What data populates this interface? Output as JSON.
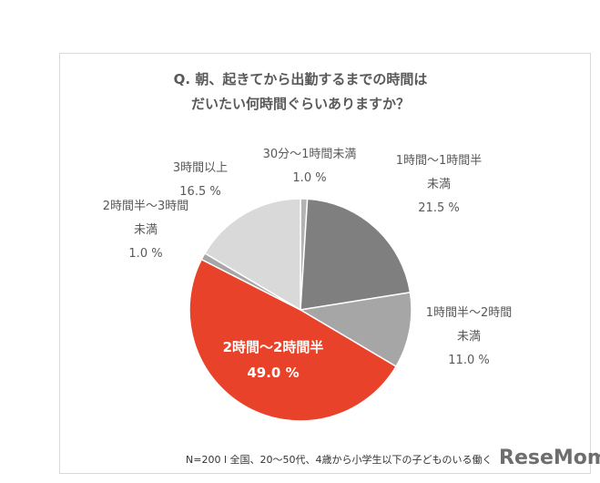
{
  "chart_data": {
    "type": "pie",
    "title": "Q. 朝、起きてから出勤するまでの時間は\nだいたい何時間ぐらいありますか？",
    "categories": [
      "30分～1時間未満",
      "1時間～1時間半\n未満",
      "1時間半～2時間\n未満",
      "2時間～2時間半",
      "2時間半～3時間\n未満",
      "3時間以上"
    ],
    "values": [
      1.0,
      21.5,
      11.0,
      49.0,
      1.0,
      16.5
    ],
    "value_labels": [
      "1.0 %",
      "21.5 %",
      "11.0 %",
      "49.0 %",
      "1.0 %",
      "16.5 %"
    ],
    "colors": [
      "#b3b3b3",
      "#7f7f7f",
      "#a6a6a6",
      "#e8432a",
      "#a6a6a6",
      "#d9d9d9"
    ],
    "note": "N=200 l 全国、20～50代、4歳から小学生以下の子どものいる働く",
    "watermark": "ReseMom"
  }
}
